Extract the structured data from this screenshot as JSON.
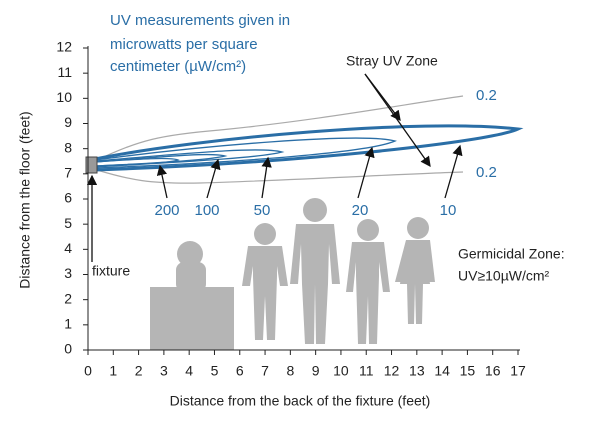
{
  "chart_data": {
    "type": "contour",
    "note_lines": [
      "UV measurements given in",
      "microwatts per square",
      "centimeter (µW/cm²)"
    ],
    "xlabel": "Distance from the back of the fixture (feet)",
    "ylabel": "Distance from the floor (feet)",
    "xlim": [
      0,
      17
    ],
    "ylim": [
      0,
      12
    ],
    "xticks": [
      0,
      1,
      2,
      3,
      4,
      5,
      6,
      7,
      8,
      9,
      10,
      11,
      12,
      13,
      14,
      15,
      16,
      17
    ],
    "yticks": [
      0,
      1,
      2,
      3,
      4,
      5,
      6,
      7,
      8,
      9,
      10,
      11,
      12
    ],
    "contour_labels": [
      200,
      100,
      50,
      20,
      10,
      0.2,
      0.2
    ],
    "color": "#2a6ea6",
    "stray_label": "Stray UV Zone",
    "fixture_label": "fixture",
    "germicidal_lines": [
      "Germicidal Zone:",
      "UV≥10µW/cm²"
    ]
  }
}
